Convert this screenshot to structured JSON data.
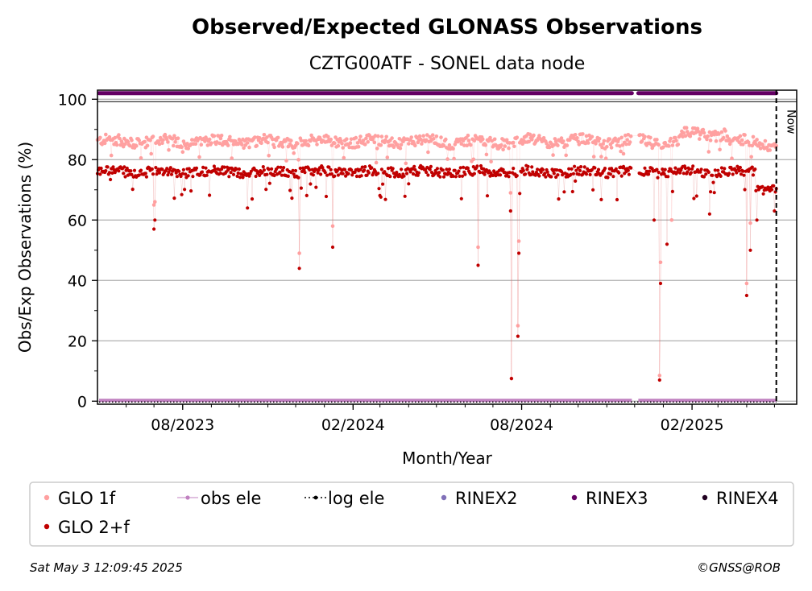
{
  "chart_data": {
    "type": "scatter",
    "title": "Observed/Expected GLONASS Observations",
    "subtitle": "CZTG00ATF - SONEL data node",
    "xlabel": "Month/Year",
    "ylabel": "Obs/Exp Observations (%)",
    "xlim": [
      "2023-05-01",
      "2025-05-25"
    ],
    "ylim": [
      -1,
      103
    ],
    "yticks": [
      0,
      20,
      40,
      60,
      80,
      100
    ],
    "xticks": [
      {
        "date": "2023-08-01",
        "label": "08/2023"
      },
      {
        "date": "2024-02-01",
        "label": "02/2024"
      },
      {
        "date": "2024-08-01",
        "label": "08/2024"
      },
      {
        "date": "2025-02-01",
        "label": "02/2025"
      }
    ],
    "grid": "horizontal",
    "now_marker": {
      "date": "2025-05-03",
      "label": "Now"
    },
    "series": [
      {
        "name": "GLO 1f",
        "color": "#ffa0a0",
        "typical_level": 86,
        "gap": [
          "2024-11-28",
          "2024-12-05"
        ],
        "outliers": [
          {
            "x": "2023-07-01",
            "y": 65
          },
          {
            "x": "2023-07-02",
            "y": 66
          },
          {
            "x": "2023-12-05",
            "y": 49
          },
          {
            "x": "2024-01-10",
            "y": 58
          },
          {
            "x": "2024-06-15",
            "y": 51
          },
          {
            "x": "2024-07-20",
            "y": 69
          },
          {
            "x": "2024-07-21",
            "y": 7.5
          },
          {
            "x": "2024-07-28",
            "y": 25
          },
          {
            "x": "2024-07-29",
            "y": 53
          },
          {
            "x": "2024-12-29",
            "y": 46
          },
          {
            "x": "2024-12-28",
            "y": 8.5
          },
          {
            "x": "2025-01-10",
            "y": 60
          },
          {
            "x": "2025-04-01",
            "y": 39
          },
          {
            "x": "2025-04-05",
            "y": 59
          }
        ]
      },
      {
        "name": "GLO 2+f",
        "color": "#c00000",
        "typical_level": 76,
        "gap": [
          "2024-11-28",
          "2024-12-05"
        ],
        "outliers": [
          {
            "x": "2023-07-01",
            "y": 57
          },
          {
            "x": "2023-07-02",
            "y": 60
          },
          {
            "x": "2023-10-10",
            "y": 64
          },
          {
            "x": "2023-12-05",
            "y": 44
          },
          {
            "x": "2024-01-10",
            "y": 51
          },
          {
            "x": "2024-06-15",
            "y": 45
          },
          {
            "x": "2024-07-20",
            "y": 63
          },
          {
            "x": "2024-07-21",
            "y": 7.5
          },
          {
            "x": "2024-07-28",
            "y": 21.5
          },
          {
            "x": "2024-07-29",
            "y": 49
          },
          {
            "x": "2024-12-22",
            "y": 60
          },
          {
            "x": "2024-12-28",
            "y": 7
          },
          {
            "x": "2024-12-29",
            "y": 39
          },
          {
            "x": "2025-01-05",
            "y": 52
          },
          {
            "x": "2025-02-20",
            "y": 62
          },
          {
            "x": "2025-04-01",
            "y": 35
          },
          {
            "x": "2025-04-05",
            "y": 50
          },
          {
            "x": "2025-04-12",
            "y": 60
          },
          {
            "x": "2025-05-01",
            "y": 63
          }
        ]
      },
      {
        "name": "obs ele",
        "color": "#c080c0",
        "level": 0,
        "gap": [
          "2024-11-28",
          "2024-12-05"
        ]
      },
      {
        "name": "log ele",
        "color": "#000000",
        "level": 0
      },
      {
        "name": "RINEX2",
        "color": "#8070b8"
      },
      {
        "name": "RINEX3",
        "color": "#640064",
        "level": 102,
        "gap": [
          "2024-11-28",
          "2024-12-05"
        ]
      },
      {
        "name": "RINEX4",
        "color": "#200020"
      }
    ]
  },
  "footer": {
    "timestamp": "Sat May  3 12:09:45 2025",
    "credit": "©GNSS@ROB"
  }
}
